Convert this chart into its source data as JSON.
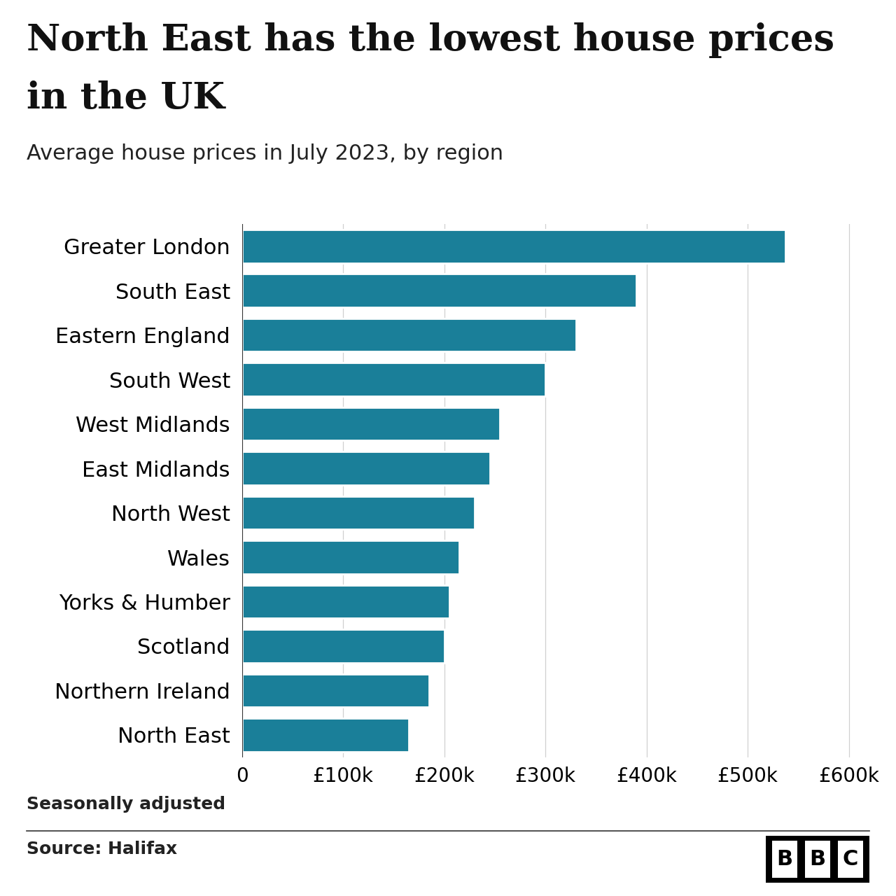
{
  "title_line1": "North East has the lowest house prices",
  "title_line2": "in the UK",
  "subtitle": "Average house prices in July 2023, by region",
  "regions": [
    "Greater London",
    "South East",
    "Eastern England",
    "South West",
    "West Midlands",
    "East Midlands",
    "North West",
    "Wales",
    "Yorks & Humber",
    "Scotland",
    "Northern Ireland",
    "North East"
  ],
  "values": [
    537000,
    390000,
    330000,
    300000,
    255000,
    245000,
    230000,
    215000,
    205000,
    200000,
    185000,
    165000
  ],
  "bar_color": "#1a7f99",
  "background_color": "#ffffff",
  "footer_note": "Seasonally adjusted",
  "source": "Source: Halifax",
  "xlim": [
    0,
    620000
  ],
  "xticks": [
    0,
    100000,
    200000,
    300000,
    400000,
    500000,
    600000
  ],
  "xtick_labels": [
    "0",
    "£100k",
    "£200k",
    "£300k",
    "£400k",
    "£500k",
    "£600k"
  ],
  "title_fontsize": 38,
  "subtitle_fontsize": 22,
  "tick_fontsize": 20,
  "label_fontsize": 22,
  "footer_fontsize": 18,
  "bbc_logo_text": "BBC",
  "title_font": "serif",
  "body_font": "sans-serif"
}
